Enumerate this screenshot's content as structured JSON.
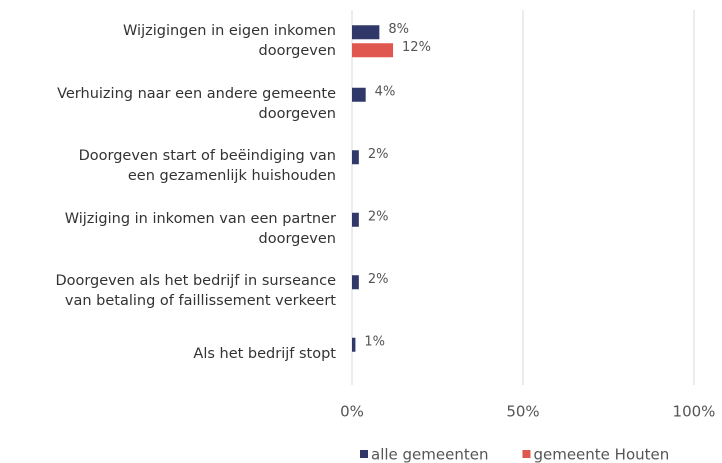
{
  "chart_data": {
    "type": "hbar",
    "categories": [
      "Wijzigingen in eigen inkomen\ndoorgeven",
      "Verhuizing naar een andere gemeente\ndoorgeven",
      "Doorgeven start of beëindiging van\neen gezamenlijk huishouden",
      "Wijziging in inkomen van een partner\ndoorgeven",
      "Doorgeven als het bedrijf in surseance\nvan betaling of faillissement verkeert",
      "Als het bedrijf stopt"
    ],
    "series": [
      {
        "name": "alle gemeenten",
        "color": "#2f3868",
        "values": [
          8,
          4,
          2,
          2,
          2,
          1
        ],
        "value_labels": [
          "8%",
          "4%",
          "2%",
          "2%",
          "2%",
          "1%"
        ]
      },
      {
        "name": "gemeente Houten",
        "color": "#e0574f",
        "values": [
          12,
          null,
          null,
          null,
          null,
          null
        ],
        "value_labels": [
          "12%",
          null,
          null,
          null,
          null,
          null
        ]
      }
    ],
    "xlim": [
      0,
      100
    ],
    "xticks": [
      {
        "value": 0,
        "label": "0%"
      },
      {
        "value": 50,
        "label": "50%"
      },
      {
        "value": 100,
        "label": "100%"
      }
    ],
    "grid": true,
    "legend": "bottom"
  }
}
